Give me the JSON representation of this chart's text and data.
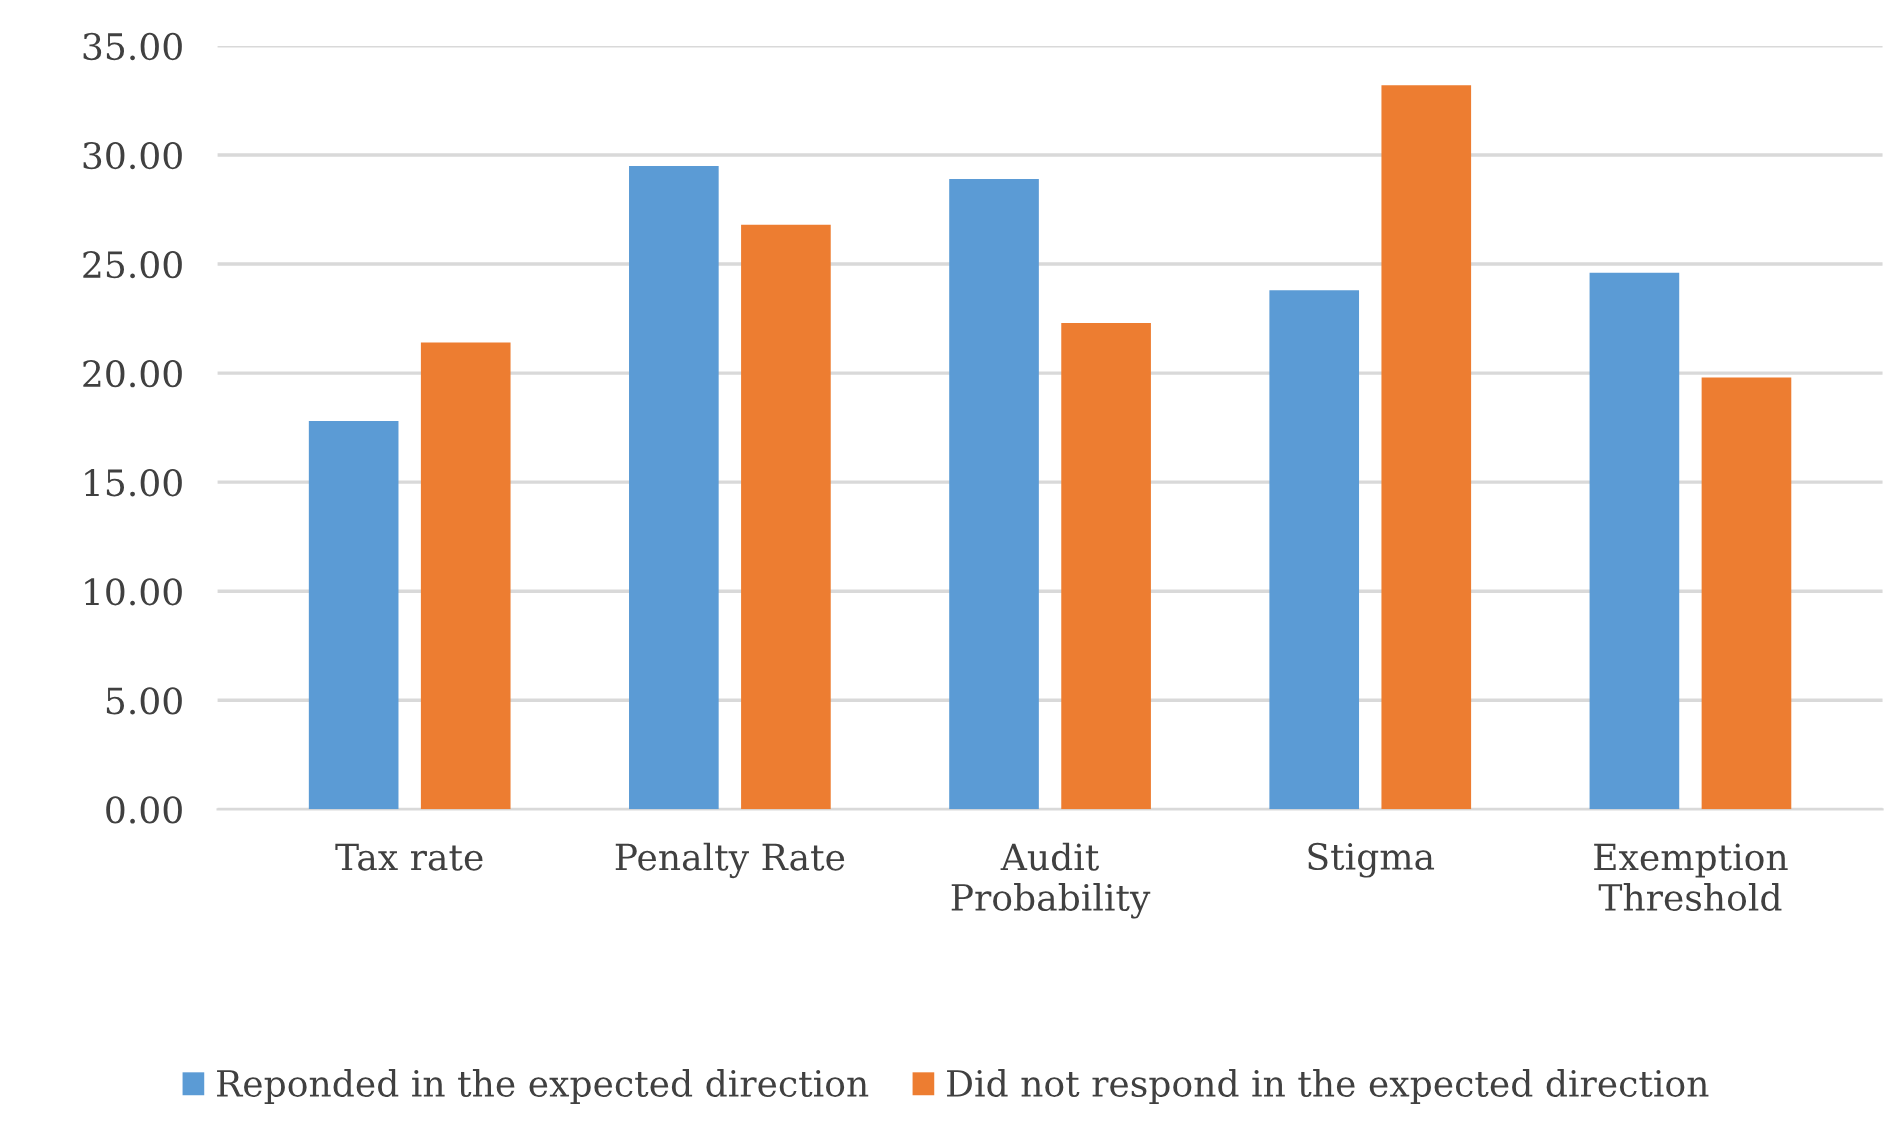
{
  "chart_data": {
    "type": "bar",
    "categories": [
      "Tax rate",
      "Penalty Rate",
      "Audit\nProbability",
      "Stigma",
      "Exemption\nThreshold"
    ],
    "series": [
      {
        "name": "Reponded in the expected direction",
        "color": "#5b9bd5",
        "values": [
          17.8,
          29.5,
          28.9,
          23.8,
          24.6
        ]
      },
      {
        "name": "Did not respond in the expected direction",
        "color": "#ed7d31",
        "values": [
          21.4,
          26.8,
          22.3,
          33.2,
          19.8
        ]
      }
    ],
    "ylim": [
      0,
      35
    ],
    "yticks": [
      {
        "value": 0,
        "label": "0.00"
      },
      {
        "value": 5,
        "label": "5.00"
      },
      {
        "value": 10,
        "label": "10.00"
      },
      {
        "value": 15,
        "label": "15.00"
      },
      {
        "value": 20,
        "label": "20.00"
      },
      {
        "value": 25,
        "label": "25.00"
      },
      {
        "value": 30,
        "label": "30.00"
      },
      {
        "value": 35,
        "label": "35.00"
      }
    ],
    "grid": "y",
    "legend": "bottom"
  }
}
